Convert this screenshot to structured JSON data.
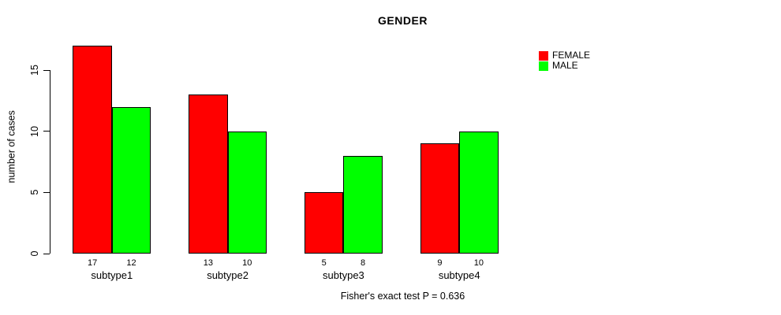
{
  "chart_data": {
    "type": "bar",
    "title": "GENDER",
    "ylabel": "number of cases",
    "xlabel": "",
    "subtitle": "Fisher's exact test P = 0.636",
    "categories": [
      "subtype1",
      "subtype2",
      "subtype3",
      "subtype4"
    ],
    "series": [
      {
        "name": "FEMALE",
        "color": "#ff0000",
        "values": [
          17,
          13,
          5,
          9
        ]
      },
      {
        "name": "MALE",
        "color": "#00ff00",
        "values": [
          12,
          10,
          8,
          10
        ]
      }
    ],
    "yticks": [
      0,
      5,
      10,
      15
    ],
    "ylim": [
      0,
      17
    ],
    "grid": false,
    "legend_position": "top-right",
    "bar_value_labels_shown": true,
    "bar_border_color": "#000000",
    "background_color": "#ffffff"
  }
}
